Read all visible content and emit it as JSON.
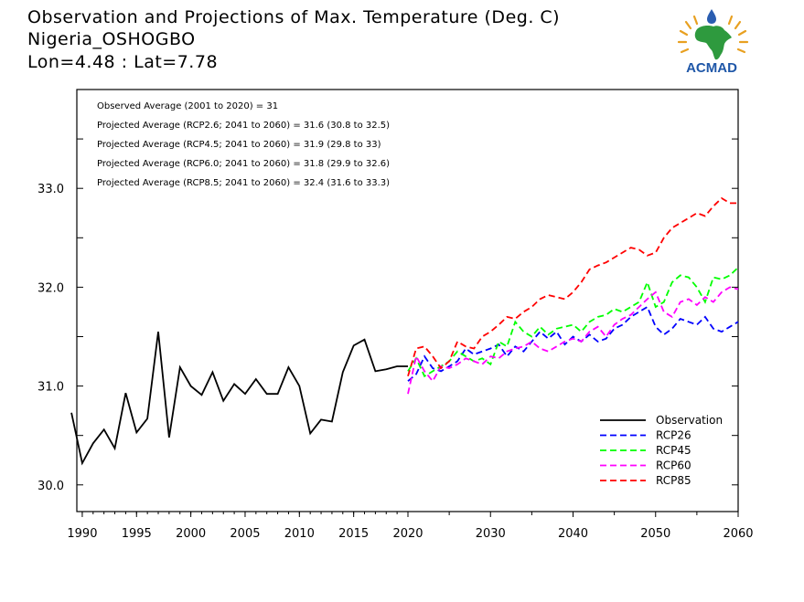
{
  "header": {
    "title": "Observation and Projections of Max. Temperature (Deg. C)",
    "location": "Nigeria_OSHOGBO",
    "coords": "Lon=4.48 : Lat=7.78"
  },
  "logo": {
    "text": "ACMAD",
    "icon": "acmad-africa-logo"
  },
  "colors": {
    "observation": "#000000",
    "rcp26": "#0000ff",
    "rcp45": "#00ff00",
    "rcp60": "#ff00ff",
    "rcp85": "#ff0000"
  },
  "chart_data": {
    "type": "line",
    "title": "Observation and Projections of Max. Temperature (Deg. C)",
    "xlim": [
      1989.5,
      2060
    ],
    "ylim": [
      29.73,
      34.0
    ],
    "yticks": [
      30.0,
      31.0,
      32.0,
      33.0
    ],
    "ytick_labels": [
      "30.0",
      "31.0",
      "32.0",
      "33.0"
    ],
    "xticks_left": [
      1990,
      1995,
      2000,
      2005,
      2010,
      2015,
      2020
    ],
    "xticks_right": [
      2030,
      2040,
      2050,
      2060
    ],
    "grid": false,
    "legend_position": "bottom-right",
    "annotations": [
      "Observed Average (2001 to 2020) = 31",
      "Projected Average (RCP2.6; 2041 to 2060) = 31.6 (30.8 to 32.5)",
      "Projected Average (RCP4.5; 2041 to 2060) = 31.9 (29.8 to 33)",
      "Projected Average (RCP6.0; 2041 to 2060) = 31.8 (29.9 to 32.6)",
      "Projected Average (RCP8.5; 2041 to 2060) = 32.4 (31.6 to 33.3)"
    ],
    "series": [
      {
        "name": "Observation",
        "key": "observation",
        "dashed": false,
        "x": [
          1989,
          1990,
          1991,
          1992,
          1993,
          1994,
          1995,
          1996,
          1997,
          1998,
          1999,
          2000,
          2001,
          2002,
          2003,
          2004,
          2005,
          2006,
          2007,
          2008,
          2009,
          2010,
          2011,
          2012,
          2013,
          2014,
          2015,
          2016,
          2017,
          2018,
          2019,
          2020
        ],
        "y": [
          30.73,
          30.22,
          30.42,
          30.56,
          30.37,
          30.93,
          30.53,
          30.67,
          31.55,
          30.48,
          31.19,
          31.0,
          30.91,
          31.14,
          30.85,
          31.02,
          30.92,
          31.07,
          30.92,
          30.92,
          31.19,
          31.0,
          30.52,
          30.66,
          30.64,
          31.14,
          31.41,
          31.47,
          31.15,
          31.17,
          31.2,
          31.2
        ]
      },
      {
        "name": "RCP26",
        "key": "rcp26",
        "dashed": true,
        "x": [
          2020,
          2021,
          2022,
          2023,
          2024,
          2025,
          2026,
          2027,
          2028,
          2029,
          2030,
          2031,
          2032,
          2033,
          2034,
          2035,
          2036,
          2037,
          2038,
          2039,
          2040,
          2041,
          2042,
          2043,
          2044,
          2045,
          2046,
          2047,
          2048,
          2049,
          2050,
          2051,
          2052,
          2053,
          2054,
          2055,
          2056,
          2057,
          2058,
          2059,
          2060
        ],
        "y": [
          31.05,
          31.12,
          31.3,
          31.18,
          31.15,
          31.2,
          31.25,
          31.38,
          31.32,
          31.35,
          31.38,
          31.42,
          31.3,
          31.4,
          31.35,
          31.45,
          31.55,
          31.48,
          31.55,
          31.42,
          31.5,
          31.45,
          31.52,
          31.45,
          31.48,
          31.58,
          31.62,
          31.7,
          31.75,
          31.8,
          31.6,
          31.52,
          31.58,
          31.68,
          31.65,
          31.62,
          31.7,
          31.58,
          31.55,
          31.6,
          31.65
        ]
      },
      {
        "name": "RCP45",
        "key": "rcp45",
        "dashed": true,
        "x": [
          2020,
          2021,
          2022,
          2023,
          2024,
          2025,
          2026,
          2027,
          2028,
          2029,
          2030,
          2031,
          2032,
          2033,
          2034,
          2035,
          2036,
          2037,
          2038,
          2039,
          2040,
          2041,
          2042,
          2043,
          2044,
          2045,
          2046,
          2047,
          2048,
          2049,
          2050,
          2051,
          2052,
          2053,
          2054,
          2055,
          2056,
          2057,
          2058,
          2059,
          2060
        ],
        "y": [
          31.15,
          31.28,
          31.1,
          31.15,
          31.2,
          31.25,
          31.35,
          31.3,
          31.25,
          31.28,
          31.22,
          31.45,
          31.4,
          31.65,
          31.55,
          31.5,
          31.6,
          31.52,
          31.58,
          31.6,
          31.62,
          31.55,
          31.65,
          31.7,
          31.72,
          31.78,
          31.75,
          31.8,
          31.85,
          32.05,
          31.8,
          31.85,
          32.05,
          32.12,
          32.1,
          32.0,
          31.85,
          32.1,
          32.08,
          32.12,
          32.2
        ]
      },
      {
        "name": "RCP60",
        "key": "rcp60",
        "dashed": true,
        "x": [
          2020,
          2021,
          2022,
          2023,
          2024,
          2025,
          2026,
          2027,
          2028,
          2029,
          2030,
          2031,
          2032,
          2033,
          2034,
          2035,
          2036,
          2037,
          2038,
          2039,
          2040,
          2041,
          2042,
          2043,
          2044,
          2045,
          2046,
          2047,
          2048,
          2049,
          2050,
          2051,
          2052,
          2053,
          2054,
          2055,
          2056,
          2057,
          2058,
          2059,
          2060
        ],
        "y": [
          30.92,
          31.3,
          31.15,
          31.05,
          31.2,
          31.18,
          31.22,
          31.28,
          31.25,
          31.22,
          31.3,
          31.28,
          31.35,
          31.38,
          31.4,
          31.45,
          31.38,
          31.35,
          31.4,
          31.45,
          31.48,
          31.45,
          31.55,
          31.6,
          31.5,
          31.62,
          31.68,
          31.72,
          31.8,
          31.88,
          31.95,
          31.75,
          31.7,
          31.85,
          31.88,
          31.82,
          31.9,
          31.85,
          31.95,
          32.0,
          31.98
        ]
      },
      {
        "name": "RCP85",
        "key": "rcp85",
        "dashed": true,
        "x": [
          2020,
          2021,
          2022,
          2023,
          2024,
          2025,
          2026,
          2027,
          2028,
          2029,
          2030,
          2031,
          2032,
          2033,
          2034,
          2035,
          2036,
          2037,
          2038,
          2039,
          2040,
          2041,
          2042,
          2043,
          2044,
          2045,
          2046,
          2047,
          2048,
          2049,
          2050,
          2051,
          2052,
          2053,
          2054,
          2055,
          2056,
          2057,
          2058,
          2059,
          2060
        ],
        "y": [
          31.1,
          31.38,
          31.4,
          31.3,
          31.18,
          31.25,
          31.45,
          31.4,
          31.38,
          31.5,
          31.55,
          31.62,
          31.7,
          31.68,
          31.75,
          31.8,
          31.88,
          31.92,
          31.9,
          31.88,
          31.95,
          32.05,
          32.18,
          32.22,
          32.25,
          32.3,
          32.35,
          32.4,
          32.38,
          32.32,
          32.35,
          32.5,
          32.6,
          32.65,
          32.7,
          32.75,
          32.72,
          32.82,
          32.9,
          32.85,
          32.85
        ]
      }
    ]
  }
}
